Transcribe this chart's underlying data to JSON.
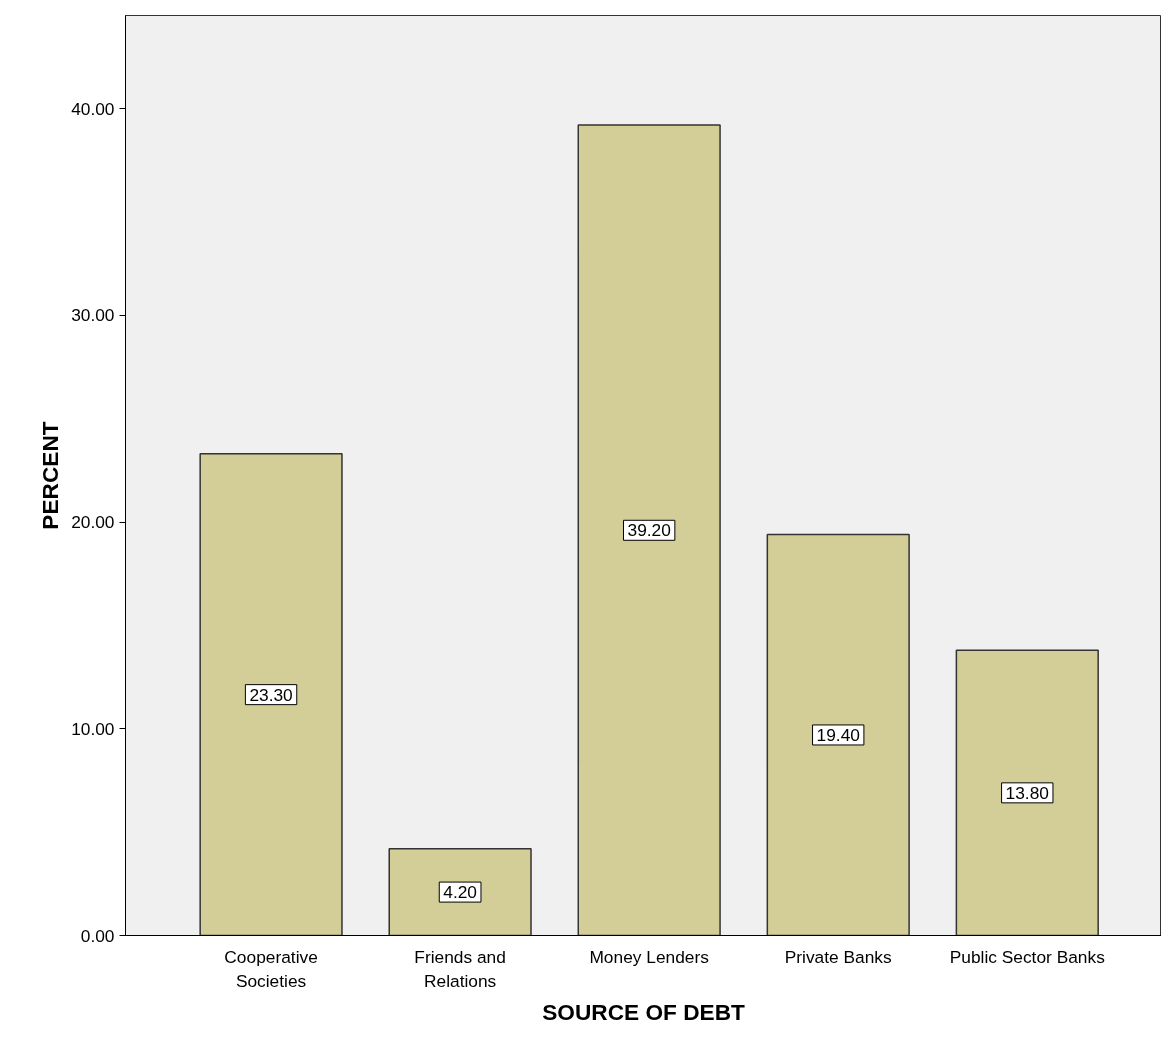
{
  "chart_data": {
    "type": "bar",
    "xlabel": "SOURCE OF DEBT",
    "ylabel": "PERCENT",
    "categories": [
      "Cooperative\nSocieties",
      "Friends and\nRelations",
      "Money Lenders",
      "Private Banks",
      "Public Sector Banks"
    ],
    "values": [
      23.3,
      4.2,
      39.2,
      19.4,
      13.8
    ],
    "value_labels": [
      "23.30",
      "4.20",
      "39.20",
      "19.40",
      "13.80"
    ],
    "color": "#d3ce97",
    "ylim": [
      0,
      44.5
    ],
    "yticks": [
      {
        "value": 0,
        "label": "0.00"
      },
      {
        "value": 10,
        "label": "10.00"
      },
      {
        "value": 20,
        "label": "20.00"
      },
      {
        "value": 30,
        "label": "30.00"
      },
      {
        "value": 40,
        "label": "40.00"
      }
    ],
    "grid": false
  }
}
